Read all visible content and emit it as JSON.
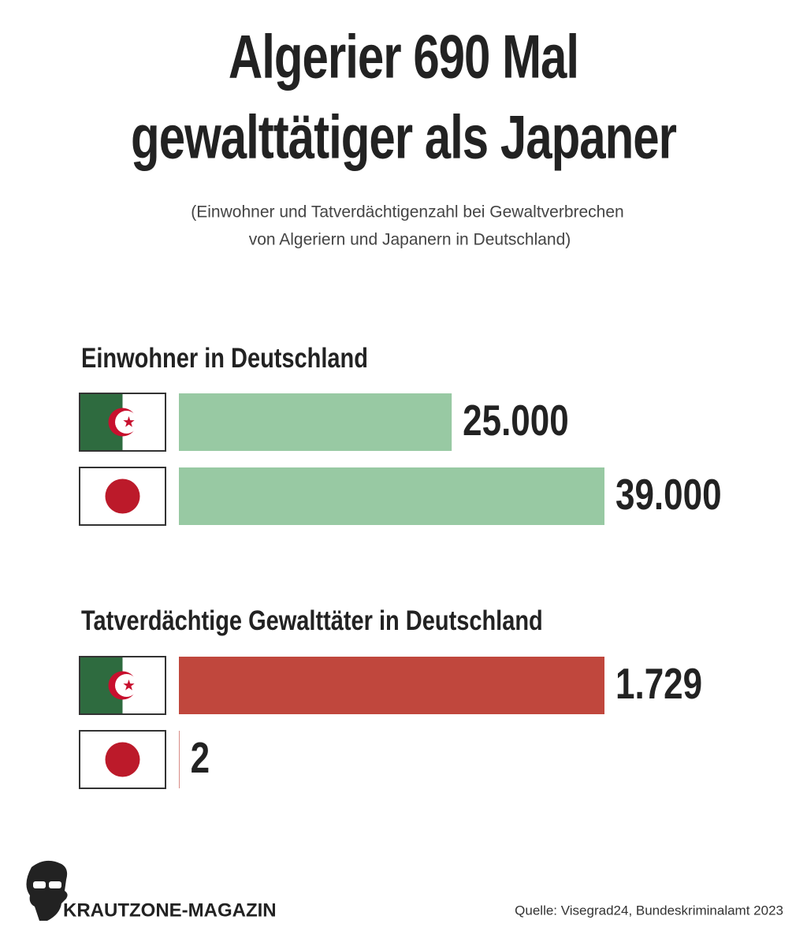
{
  "title": [
    "Algerier 690 Mal",
    "gewalttätiger als Japaner"
  ],
  "subtitle": [
    "(Einwohner und Tatverdächtigenzahl bei Gewaltverbrechen",
    "von Algeriern und Japanern in Deutschland)"
  ],
  "brand": "KRAUTZONE-MAGAZIN",
  "source": "Quelle: Visegrad24, Bundeskriminalamt 2023",
  "chart_data": [
    {
      "type": "bar",
      "title": "Einwohner in Deutschland",
      "categories": [
        null,
        null
      ],
      "values": [
        25000,
        39000
      ],
      "value_labels": [
        "25.000",
        "39.000"
      ],
      "color": "#98c9a3"
    },
    {
      "type": "bar",
      "title": "Tatverdächtige Gewalttäter in Deutschland",
      "categories": [
        null,
        null
      ],
      "values": [
        1729,
        2
      ],
      "value_labels": [
        "1.729",
        "2"
      ],
      "color": "#c0473d"
    }
  ]
}
